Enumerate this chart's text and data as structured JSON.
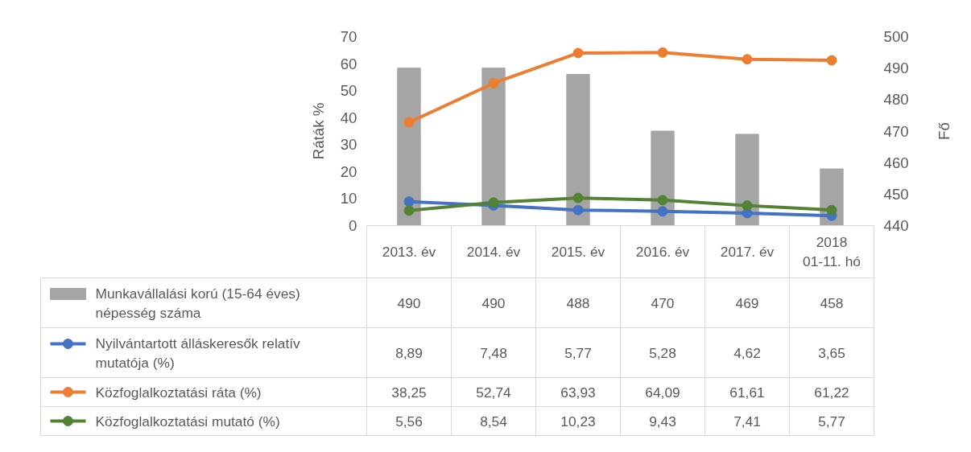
{
  "chart_data": {
    "type": "line",
    "ylabel": "Ráták %",
    "y2label": "Fő",
    "categories": [
      "2013. év",
      "2014. év",
      "2015. év",
      "2016. év",
      "2017. év",
      "2018 01-11. hó"
    ],
    "series": [
      {
        "name": "Munkavállalási korú (15-64 éves) népesség száma",
        "type": "bar",
        "axis": "y2",
        "color": "#a5a5a5",
        "values": [
          490,
          490,
          488,
          470,
          469,
          458
        ],
        "value_labels": [
          "490",
          "490",
          "488",
          "470",
          "469",
          "458"
        ]
      },
      {
        "name": "Nyilvántartott álláskeresők relatív mutatója (%)",
        "color": "#4472c4",
        "values": [
          8.89,
          7.48,
          5.77,
          5.28,
          4.62,
          3.65
        ],
        "value_labels": [
          "8,89",
          "7,48",
          "5,77",
          "5,28",
          "4,62",
          "3,65"
        ]
      },
      {
        "name": "Közfoglalkoztatási ráta (%)",
        "color": "#ed7d31",
        "values": [
          38.25,
          52.74,
          63.93,
          64.09,
          61.61,
          61.22
        ],
        "value_labels": [
          "38,25",
          "52,74",
          "63,93",
          "64,09",
          "61,61",
          "61,22"
        ]
      },
      {
        "name": "Közfoglalkoztatási mutató (%)",
        "color": "#548235",
        "values": [
          5.56,
          8.54,
          10.23,
          9.43,
          7.41,
          5.77
        ],
        "value_labels": [
          "5,56",
          "8,54",
          "10,23",
          "9,43",
          "7,41",
          "5,77"
        ]
      }
    ],
    "ylim": [
      0,
      70
    ],
    "yticks": [
      0,
      10,
      20,
      30,
      40,
      50,
      60,
      70
    ],
    "y2lim": [
      440,
      500
    ],
    "y2ticks": [
      440,
      450,
      460,
      470,
      480,
      490,
      500
    ],
    "marker": "circle",
    "grid": false,
    "legend": "bottom"
  }
}
